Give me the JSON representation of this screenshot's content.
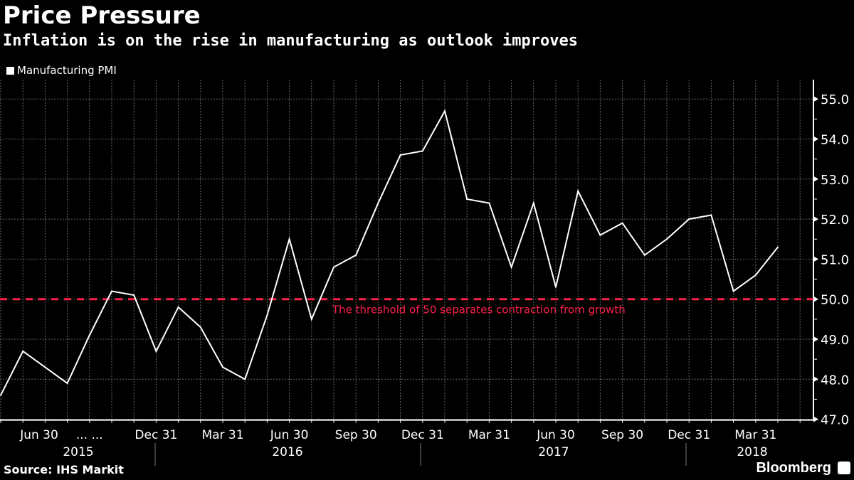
{
  "chart_data": {
    "type": "line",
    "title": "Price Pressure",
    "subtitle": "Inflation is on the rise in manufacturing as outlook improves",
    "legend": {
      "placement": "top-left",
      "entries": [
        "Manufacturing PMI"
      ]
    },
    "series": [
      {
        "name": "Manufacturing PMI",
        "color": "#ffffff",
        "x": [
          "2015-05",
          "2015-06",
          "2015-07",
          "2015-08",
          "2015-09",
          "2015-10",
          "2015-11",
          "2015-12",
          "2016-01",
          "2016-02",
          "2016-03",
          "2016-04",
          "2016-05",
          "2016-06",
          "2016-07",
          "2016-08",
          "2016-09",
          "2016-10",
          "2016-11",
          "2016-12",
          "2017-01",
          "2017-02",
          "2017-03",
          "2017-04",
          "2017-05",
          "2017-06",
          "2017-07",
          "2017-08",
          "2017-09",
          "2017-10",
          "2017-11",
          "2017-12",
          "2018-01",
          "2018-02",
          "2018-03",
          "2018-04"
        ],
        "values": [
          47.6,
          48.7,
          48.3,
          47.9,
          49.1,
          50.2,
          50.1,
          48.7,
          49.8,
          49.3,
          48.3,
          48.0,
          49.6,
          51.5,
          49.5,
          50.8,
          51.1,
          52.4,
          53.6,
          53.7,
          54.7,
          52.5,
          52.4,
          50.8,
          52.4,
          50.3,
          52.7,
          51.6,
          51.9,
          51.1,
          51.5,
          52.0,
          52.1,
          50.2,
          50.6,
          51.3
        ]
      }
    ],
    "ylim": [
      47,
      55
    ],
    "yticks": [
      "47.0",
      "48.0",
      "49.0",
      "50.0",
      "51.0",
      "52.0",
      "53.0",
      "54.0",
      "55.0"
    ],
    "y_axis_side": "right",
    "grid": true,
    "xtick_labels": [
      {
        "label": "Jun 30",
        "at": "2015-06"
      },
      {
        "label": "... ...",
        "at": "2015-09"
      },
      {
        "label": "Dec 31",
        "at": "2015-12"
      },
      {
        "label": "Mar 31",
        "at": "2016-03"
      },
      {
        "label": "Jun 30",
        "at": "2016-06"
      },
      {
        "label": "Sep 30",
        "at": "2016-09"
      },
      {
        "label": "Dec 31",
        "at": "2016-12"
      },
      {
        "label": "Mar 31",
        "at": "2017-03"
      },
      {
        "label": "Jun 30",
        "at": "2017-06"
      },
      {
        "label": "Sep 30",
        "at": "2017-09"
      },
      {
        "label": "Dec 31",
        "at": "2017-12"
      },
      {
        "label": "Mar 31",
        "at": "2018-03"
      }
    ],
    "year_labels": [
      "2015",
      "2016",
      "2017",
      "2018"
    ],
    "annotations": [
      {
        "type": "hline",
        "y": 50,
        "style": "dashed",
        "color": "#ff1f4b",
        "text": "The threshold of 50 separates contraction from growth"
      }
    ]
  },
  "footer": {
    "source": "Source: IHS Markit",
    "brand": "Bloomberg"
  }
}
